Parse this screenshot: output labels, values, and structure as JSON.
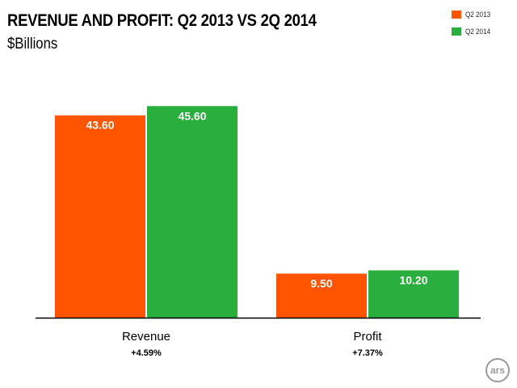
{
  "chart_data": {
    "type": "bar",
    "title": "REVENUE AND PROFIT: Q2 2013 VS 2Q 2014",
    "subtitle": "$Billions",
    "categories": [
      "Revenue",
      "Profit"
    ],
    "category_notes": [
      "+4.59%",
      "+7.37%"
    ],
    "series": [
      {
        "name": "Q2 2013",
        "color": "#ff5500",
        "values": [
          43.6,
          9.5
        ],
        "labels": [
          "43.60",
          "9.50"
        ]
      },
      {
        "name": "Q2 2014",
        "color": "#2aae3d",
        "values": [
          45.6,
          10.2
        ],
        "labels": [
          "45.60",
          "10.20"
        ]
      }
    ],
    "ylim": [
      0,
      50
    ],
    "grid": false,
    "legend_position": "top-right"
  },
  "branding": {
    "logo_text": "ars",
    "logo_icon": "ars-logo-icon"
  }
}
